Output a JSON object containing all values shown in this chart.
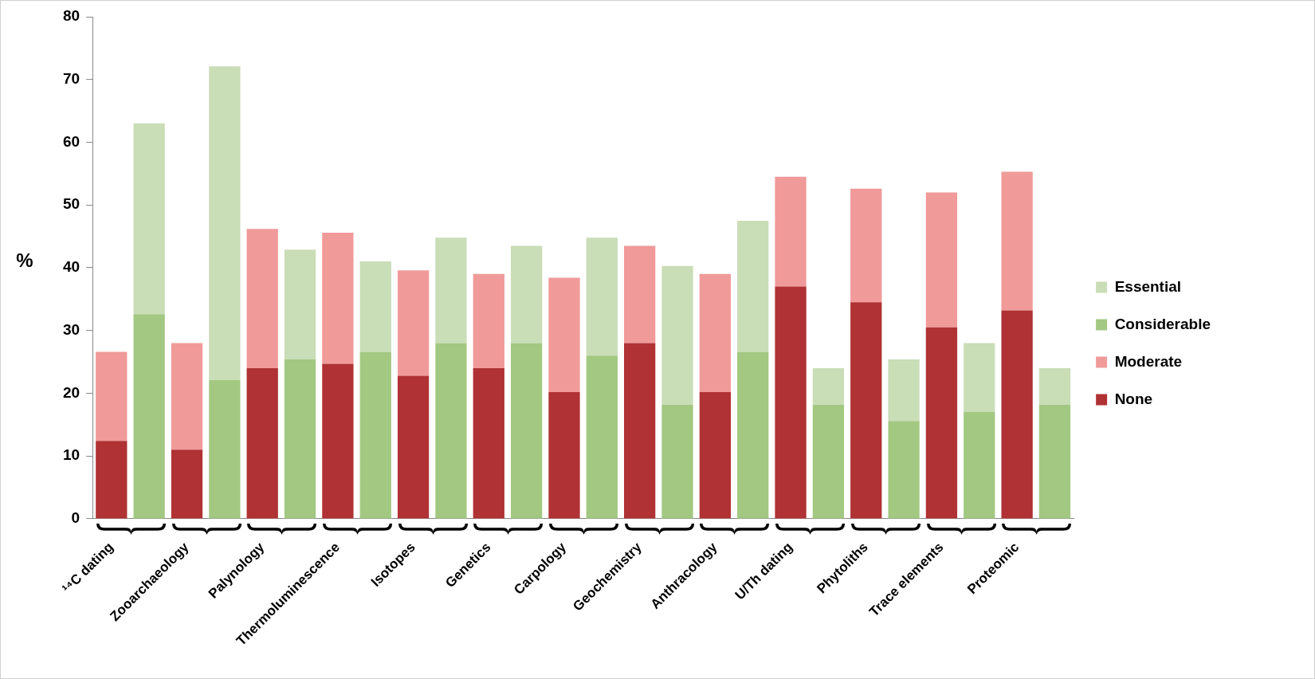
{
  "chart_data": {
    "type": "bar",
    "stacked": true,
    "ylabel": "%",
    "legend": "right",
    "grid": false,
    "categories": [
      "¹⁴C dating",
      null,
      "Zooarchaeology",
      null,
      "Palynology",
      null,
      "Thermoluminescence",
      null,
      "Isotopes",
      null,
      "Genetics",
      null,
      "Carpology",
      null,
      "Geochemistry",
      null,
      "Anthracology",
      null,
      "U/Th dating",
      null,
      "Phytoliths",
      null,
      "Trace elements",
      null,
      "Proteomic",
      null
    ],
    "ylim": [
      0,
      80
    ],
    "yticks": [
      0,
      10,
      20,
      30,
      40,
      50,
      60,
      70,
      80
    ],
    "series": [
      {
        "name": "None",
        "color": "#b03234",
        "values": [
          12.4,
          null,
          11,
          null,
          24,
          null,
          24.7,
          null,
          22.8,
          null,
          24,
          null,
          20.2,
          null,
          28,
          null,
          20.2,
          null,
          37,
          null,
          34.5,
          null,
          30.5,
          null,
          33.2,
          null
        ]
      },
      {
        "name": "Moderate",
        "color": "#f09a9a",
        "values": [
          14.2,
          null,
          17,
          null,
          22.2,
          null,
          20.9,
          null,
          16.8,
          null,
          15,
          null,
          18.2,
          null,
          15.5,
          null,
          18.8,
          null,
          17.5,
          null,
          18.1,
          null,
          21.5,
          null,
          22.1,
          null
        ]
      },
      {
        "name": "Considerable",
        "color": "#a3c882",
        "values": [
          null,
          32.6,
          null,
          22.1,
          null,
          25.4,
          null,
          26.6,
          null,
          28,
          null,
          28,
          null,
          26,
          null,
          18.2,
          null,
          26.6,
          null,
          18.2,
          null,
          15.6,
          null,
          17,
          null,
          18.2
        ]
      },
      {
        "name": "Essential",
        "color": "#c9ddb7",
        "values": [
          null,
          30.4,
          null,
          50,
          null,
          17.5,
          null,
          14.4,
          null,
          16.8,
          null,
          15.5,
          null,
          18.8,
          null,
          22.1,
          null,
          20.9,
          null,
          5.8,
          null,
          9.8,
          null,
          11,
          null,
          5.8
        ]
      }
    ]
  }
}
